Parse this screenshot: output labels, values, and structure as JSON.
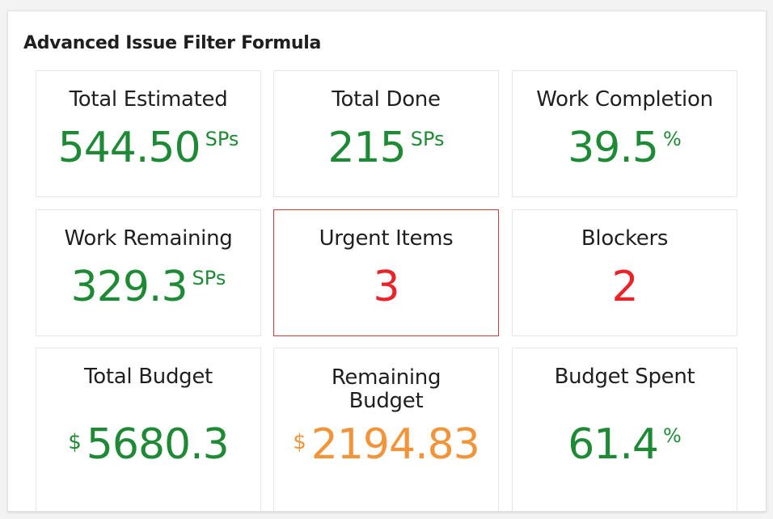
{
  "widget": {
    "title": "Advanced Issue Filter Formula"
  },
  "cards": [
    {
      "label": "Total Estimated",
      "value": "544.50",
      "unit": "SPs",
      "color": "#1e8a35"
    },
    {
      "label": "Total Done",
      "value": "215",
      "unit": "SPs",
      "color": "#1e8a35"
    },
    {
      "label": "Work Completion",
      "value": "39.5",
      "unit": "%",
      "color": "#1e8a35"
    },
    {
      "label": "Work Remaining",
      "value": "329.3",
      "unit": "SPs",
      "color": "#1e8a35"
    },
    {
      "label": "Urgent Items",
      "value": "3",
      "unit": "",
      "color": "#e8232a",
      "highlighted": true
    },
    {
      "label": "Blockers",
      "value": "2",
      "unit": "",
      "color": "#e8232a"
    },
    {
      "label": "Total Budget",
      "prefix": "$",
      "value": "5680.3",
      "unit": "",
      "color": "#1e8a35"
    },
    {
      "label": "Remaining Budget",
      "prefix": "$",
      "value": "2194.83",
      "unit": "",
      "color": "#f2953a"
    },
    {
      "label": "Budget Spent",
      "value": "61.4",
      "unit": "%",
      "color": "#1e8a35"
    }
  ],
  "colors": {
    "positive": "#1e8a35",
    "alert": "#e8232a",
    "warning": "#f2953a"
  }
}
